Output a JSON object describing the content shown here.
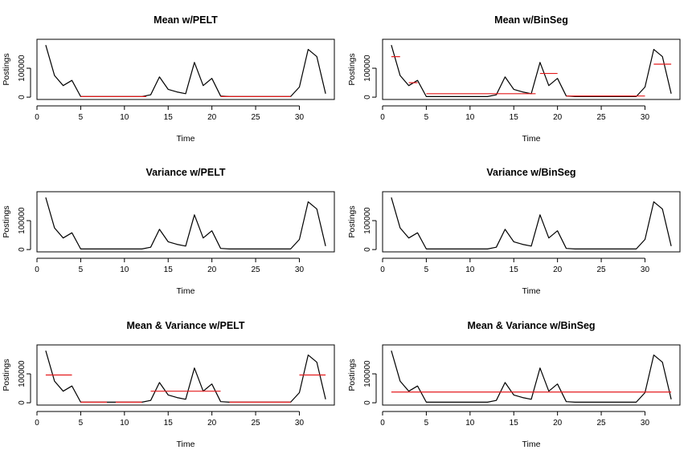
{
  "figure": {
    "background": "#ffffff",
    "series_color": "#000000",
    "segment_color": "#e41a1c"
  },
  "chart_data": [
    {
      "type": "line",
      "title": "Mean w/PELT",
      "xlabel": "Time",
      "ylabel": "Postings",
      "xlim": [
        0,
        34
      ],
      "ylim": [
        -8000,
        200000
      ],
      "xticks": [
        0,
        5,
        10,
        15,
        20,
        25,
        30
      ],
      "yticks": [
        0,
        100000
      ],
      "ytick_labels": [
        "0",
        "100000"
      ],
      "grid": false,
      "series": [
        {
          "name": "Postings",
          "x": [
            1,
            2,
            3,
            4,
            5,
            6,
            7,
            8,
            9,
            10,
            11,
            12,
            13,
            14,
            15,
            16,
            17,
            18,
            19,
            20,
            21,
            22,
            23,
            24,
            25,
            26,
            27,
            28,
            29,
            30,
            31,
            32,
            33
          ],
          "values": [
            180000,
            75000,
            40000,
            58000,
            2000,
            2000,
            2000,
            2000,
            2000,
            2000,
            2000,
            2000,
            8000,
            70000,
            27000,
            18000,
            12000,
            120000,
            40000,
            65000,
            4000,
            2000,
            2000,
            2000,
            2000,
            2000,
            2000,
            2000,
            2000,
            35000,
            165000,
            140000,
            12000
          ]
        }
      ],
      "segments": [
        {
          "x0": 5,
          "x1": 12.5,
          "y": 2000
        },
        {
          "x0": 21,
          "x1": 29,
          "y": 2000
        }
      ]
    },
    {
      "type": "line",
      "title": "Mean w/BinSeg",
      "xlabel": "Time",
      "ylabel": "Postings",
      "xlim": [
        0,
        34
      ],
      "ylim": [
        -8000,
        200000
      ],
      "xticks": [
        0,
        5,
        10,
        15,
        20,
        25,
        30
      ],
      "yticks": [
        0,
        100000
      ],
      "ytick_labels": [
        "0",
        "100000"
      ],
      "grid": false,
      "series": [
        {
          "name": "Postings",
          "x": [
            1,
            2,
            3,
            4,
            5,
            6,
            7,
            8,
            9,
            10,
            11,
            12,
            13,
            14,
            15,
            16,
            17,
            18,
            19,
            20,
            21,
            22,
            23,
            24,
            25,
            26,
            27,
            28,
            29,
            30,
            31,
            32,
            33
          ],
          "values": [
            180000,
            75000,
            40000,
            58000,
            2000,
            2000,
            2000,
            2000,
            2000,
            2000,
            2000,
            2000,
            8000,
            70000,
            27000,
            18000,
            12000,
            120000,
            40000,
            65000,
            4000,
            2000,
            2000,
            2000,
            2000,
            2000,
            2000,
            2000,
            2000,
            35000,
            165000,
            140000,
            12000
          ]
        }
      ],
      "segments": [
        {
          "x0": 1,
          "x1": 2,
          "y": 140000
        },
        {
          "x0": 3,
          "x1": 4,
          "y": 50000
        },
        {
          "x0": 5,
          "x1": 17.5,
          "y": 12000
        },
        {
          "x0": 18,
          "x1": 20,
          "y": 82000
        },
        {
          "x0": 21,
          "x1": 30,
          "y": 4000
        },
        {
          "x0": 31,
          "x1": 33,
          "y": 114000
        }
      ]
    },
    {
      "type": "line",
      "title": "Variance w/PELT",
      "xlabel": "Time",
      "ylabel": "Postings",
      "xlim": [
        0,
        34
      ],
      "ylim": [
        -8000,
        200000
      ],
      "xticks": [
        0,
        5,
        10,
        15,
        20,
        25,
        30
      ],
      "yticks": [
        0,
        100000
      ],
      "ytick_labels": [
        "0",
        "100000"
      ],
      "grid": false,
      "series": [
        {
          "name": "Postings",
          "x": [
            1,
            2,
            3,
            4,
            5,
            6,
            7,
            8,
            9,
            10,
            11,
            12,
            13,
            14,
            15,
            16,
            17,
            18,
            19,
            20,
            21,
            22,
            23,
            24,
            25,
            26,
            27,
            28,
            29,
            30,
            31,
            32,
            33
          ],
          "values": [
            180000,
            75000,
            40000,
            58000,
            2000,
            2000,
            2000,
            2000,
            2000,
            2000,
            2000,
            2000,
            8000,
            70000,
            27000,
            18000,
            12000,
            120000,
            40000,
            65000,
            4000,
            2000,
            2000,
            2000,
            2000,
            2000,
            2000,
            2000,
            2000,
            35000,
            165000,
            140000,
            12000
          ]
        }
      ],
      "segments": []
    },
    {
      "type": "line",
      "title": "Variance w/BinSeg",
      "xlabel": "Time",
      "ylabel": "Postings",
      "xlim": [
        0,
        34
      ],
      "ylim": [
        -8000,
        200000
      ],
      "xticks": [
        0,
        5,
        10,
        15,
        20,
        25,
        30
      ],
      "yticks": [
        0,
        100000
      ],
      "ytick_labels": [
        "0",
        "100000"
      ],
      "grid": false,
      "series": [
        {
          "name": "Postings",
          "x": [
            1,
            2,
            3,
            4,
            5,
            6,
            7,
            8,
            9,
            10,
            11,
            12,
            13,
            14,
            15,
            16,
            17,
            18,
            19,
            20,
            21,
            22,
            23,
            24,
            25,
            26,
            27,
            28,
            29,
            30,
            31,
            32,
            33
          ],
          "values": [
            180000,
            75000,
            40000,
            58000,
            2000,
            2000,
            2000,
            2000,
            2000,
            2000,
            2000,
            2000,
            8000,
            70000,
            27000,
            18000,
            12000,
            120000,
            40000,
            65000,
            4000,
            2000,
            2000,
            2000,
            2000,
            2000,
            2000,
            2000,
            2000,
            35000,
            165000,
            140000,
            12000
          ]
        }
      ],
      "segments": []
    },
    {
      "type": "line",
      "title": "Mean & Variance w/PELT",
      "xlabel": "Time",
      "ylabel": "Postings",
      "xlim": [
        0,
        34
      ],
      "ylim": [
        -8000,
        200000
      ],
      "xticks": [
        0,
        5,
        10,
        15,
        20,
        25,
        30
      ],
      "yticks": [
        0,
        100000
      ],
      "ytick_labels": [
        "0",
        "100000"
      ],
      "grid": false,
      "series": [
        {
          "name": "Postings",
          "x": [
            1,
            2,
            3,
            4,
            5,
            6,
            7,
            8,
            9,
            10,
            11,
            12,
            13,
            14,
            15,
            16,
            17,
            18,
            19,
            20,
            21,
            22,
            23,
            24,
            25,
            26,
            27,
            28,
            29,
            30,
            31,
            32,
            33
          ],
          "values": [
            180000,
            75000,
            40000,
            58000,
            2000,
            2000,
            2000,
            2000,
            2000,
            2000,
            2000,
            2000,
            8000,
            70000,
            27000,
            18000,
            12000,
            120000,
            40000,
            65000,
            4000,
            2000,
            2000,
            2000,
            2000,
            2000,
            2000,
            2000,
            2000,
            35000,
            165000,
            140000,
            12000
          ]
        }
      ],
      "segments": [
        {
          "x0": 1,
          "x1": 4,
          "y": 96000
        },
        {
          "x0": 5,
          "x1": 8,
          "y": 2000
        },
        {
          "x0": 9,
          "x1": 12,
          "y": 2000
        },
        {
          "x0": 13,
          "x1": 21,
          "y": 40000
        },
        {
          "x0": 22,
          "x1": 29,
          "y": 2000
        },
        {
          "x0": 30,
          "x1": 33,
          "y": 96000
        }
      ]
    },
    {
      "type": "line",
      "title": "Mean & Variance w/BinSeg",
      "xlabel": "Time",
      "ylabel": "Postings",
      "xlim": [
        0,
        34
      ],
      "ylim": [
        -8000,
        200000
      ],
      "xticks": [
        0,
        5,
        10,
        15,
        20,
        25,
        30
      ],
      "yticks": [
        0,
        100000
      ],
      "ytick_labels": [
        "0",
        "100000"
      ],
      "grid": false,
      "series": [
        {
          "name": "Postings",
          "x": [
            1,
            2,
            3,
            4,
            5,
            6,
            7,
            8,
            9,
            10,
            11,
            12,
            13,
            14,
            15,
            16,
            17,
            18,
            19,
            20,
            21,
            22,
            23,
            24,
            25,
            26,
            27,
            28,
            29,
            30,
            31,
            32,
            33
          ],
          "values": [
            180000,
            75000,
            40000,
            58000,
            2000,
            2000,
            2000,
            2000,
            2000,
            2000,
            2000,
            2000,
            8000,
            70000,
            27000,
            18000,
            12000,
            120000,
            40000,
            65000,
            4000,
            2000,
            2000,
            2000,
            2000,
            2000,
            2000,
            2000,
            2000,
            35000,
            165000,
            140000,
            12000
          ]
        }
      ],
      "segments": [
        {
          "x0": 1,
          "x1": 33,
          "y": 37000
        }
      ]
    }
  ]
}
